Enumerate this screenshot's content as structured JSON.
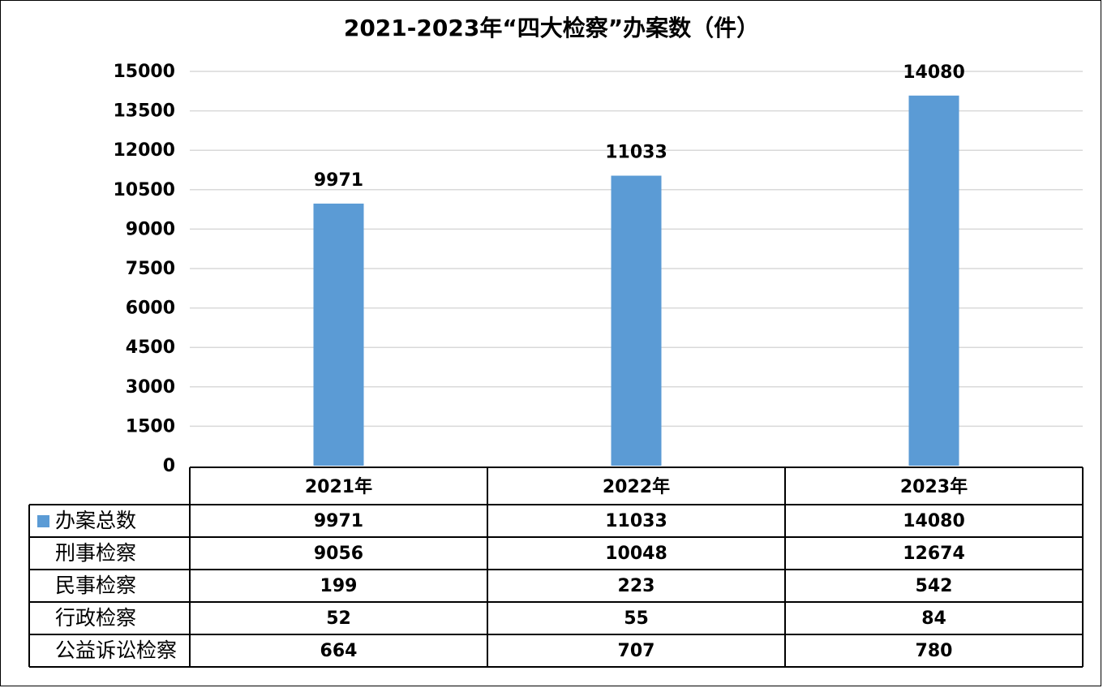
{
  "chart_data": {
    "type": "bar",
    "title": "2021-2023年“四大检察”办案数（件）",
    "categories": [
      "2021年",
      "2022年",
      "2023年"
    ],
    "ylim": [
      0,
      15000
    ],
    "yticks": [
      0,
      1500,
      3000,
      4500,
      6000,
      7500,
      9000,
      10500,
      12000,
      13500,
      15000
    ],
    "grid": true,
    "bar_color": "#5B9BD5",
    "series": [
      {
        "name": "办案总数",
        "values": [
          9971,
          11033,
          14080
        ],
        "plotted": true
      },
      {
        "name": "刑事检察",
        "values": [
          9056,
          10048,
          12674
        ],
        "plotted": false
      },
      {
        "name": "民事检察",
        "values": [
          199,
          223,
          542
        ],
        "plotted": false
      },
      {
        "name": "行政检察",
        "values": [
          52,
          55,
          84
        ],
        "plotted": false
      },
      {
        "name": "公益诉讼检察",
        "values": [
          664,
          707,
          780
        ],
        "plotted": false
      }
    ]
  }
}
